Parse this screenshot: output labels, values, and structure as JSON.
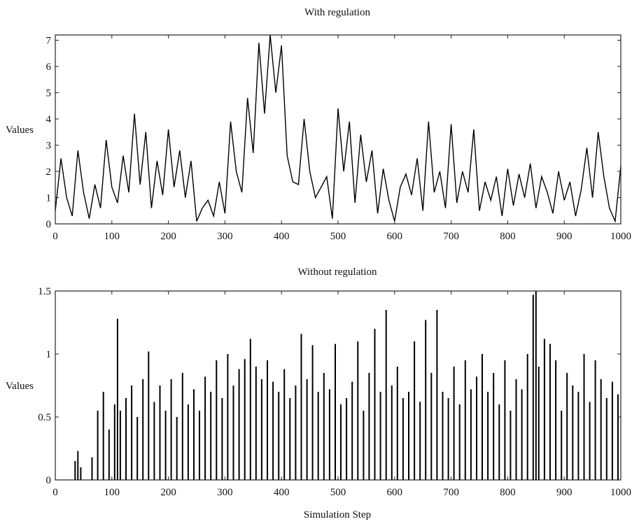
{
  "chart_data": [
    {
      "type": "line",
      "title": "With regulation",
      "xlabel": "",
      "ylabel": "Values",
      "xlim": [
        0,
        1000
      ],
      "ylim": [
        0,
        7.2
      ],
      "xticks": [
        0,
        100,
        200,
        300,
        400,
        500,
        600,
        700,
        800,
        900,
        1000
      ],
      "yticks": [
        0,
        1,
        2,
        3,
        4,
        5,
        6,
        7
      ],
      "grid": false,
      "color": "#000000",
      "series": [
        {
          "x": [
            0,
            10,
            20,
            30,
            40,
            50,
            60,
            70,
            80,
            90,
            100,
            110,
            120,
            130,
            140,
            150,
            160,
            170,
            180,
            190,
            200,
            210,
            220,
            230,
            240,
            250,
            260,
            270,
            280,
            290,
            300,
            310,
            320,
            330,
            340,
            350,
            360,
            370,
            380,
            390,
            400,
            410,
            420,
            430,
            440,
            450,
            460,
            470,
            480,
            490,
            500,
            510,
            520,
            530,
            540,
            550,
            560,
            570,
            580,
            590,
            600,
            610,
            620,
            630,
            640,
            650,
            660,
            670,
            680,
            690,
            700,
            710,
            720,
            730,
            740,
            750,
            760,
            770,
            780,
            790,
            800,
            810,
            820,
            830,
            840,
            850,
            860,
            870,
            880,
            890,
            900,
            910,
            920,
            930,
            940,
            950,
            960,
            970,
            980,
            990,
            1000
          ],
          "values": [
            0.5,
            2.5,
            1.0,
            0.3,
            2.8,
            1.2,
            0.2,
            1.5,
            0.6,
            3.2,
            1.4,
            0.8,
            2.6,
            1.2,
            4.2,
            1.5,
            3.5,
            0.6,
            2.4,
            1.1,
            3.6,
            1.4,
            2.8,
            1.0,
            2.4,
            0.1,
            0.6,
            0.9,
            0.3,
            1.6,
            0.4,
            3.9,
            2.0,
            1.2,
            4.8,
            2.7,
            6.9,
            4.2,
            7.2,
            5.0,
            6.8,
            2.6,
            1.6,
            1.5,
            4.0,
            2.0,
            1.0,
            1.4,
            1.8,
            0.2,
            4.4,
            2.0,
            3.9,
            0.8,
            3.4,
            1.6,
            2.8,
            0.4,
            2.1,
            0.9,
            0.1,
            1.4,
            1.9,
            1.1,
            2.5,
            0.5,
            3.9,
            1.2,
            2.0,
            0.6,
            3.8,
            0.8,
            2.0,
            1.2,
            3.6,
            0.5,
            1.6,
            0.9,
            1.8,
            0.3,
            2.1,
            0.7,
            1.9,
            1.0,
            2.3,
            0.6,
            1.8,
            1.2,
            0.4,
            2.0,
            0.9,
            1.6,
            0.3,
            1.3,
            2.9,
            1.0,
            3.5,
            1.8,
            0.6,
            0.1,
            2.2
          ]
        }
      ]
    },
    {
      "type": "bar",
      "title": "Without regulation",
      "xlabel": "Simulation Step",
      "ylabel": "Values",
      "xlim": [
        0,
        1000
      ],
      "ylim": [
        0,
        1.5
      ],
      "xticks": [
        0,
        100,
        200,
        300,
        400,
        500,
        600,
        700,
        800,
        900,
        1000
      ],
      "yticks": [
        0,
        0.5,
        1,
        1.5
      ],
      "yticklabels": [
        "0",
        "0.5",
        "1",
        "1.5"
      ],
      "grid": false,
      "color": "#000000",
      "series": [
        {
          "x": [
            35,
            40,
            45,
            65,
            75,
            85,
            95,
            105,
            110,
            115,
            125,
            135,
            145,
            155,
            165,
            175,
            185,
            195,
            205,
            215,
            225,
            235,
            245,
            255,
            265,
            275,
            285,
            295,
            305,
            315,
            325,
            335,
            345,
            355,
            365,
            375,
            385,
            395,
            405,
            415,
            425,
            435,
            445,
            455,
            465,
            475,
            485,
            495,
            505,
            515,
            525,
            535,
            545,
            555,
            565,
            575,
            585,
            595,
            605,
            615,
            625,
            635,
            645,
            655,
            665,
            675,
            685,
            695,
            705,
            715,
            725,
            735,
            745,
            755,
            765,
            775,
            785,
            795,
            805,
            815,
            825,
            835,
            845,
            850,
            855,
            865,
            875,
            885,
            895,
            905,
            915,
            925,
            935,
            945,
            955,
            965,
            975,
            985,
            995
          ],
          "values": [
            0.15,
            0.23,
            0.1,
            0.18,
            0.55,
            0.7,
            0.4,
            0.6,
            1.28,
            0.55,
            0.65,
            0.75,
            0.5,
            0.8,
            1.02,
            0.62,
            0.75,
            0.55,
            0.8,
            0.5,
            0.85,
            0.6,
            0.72,
            0.55,
            0.82,
            0.7,
            0.95,
            0.65,
            1.0,
            0.75,
            0.88,
            0.96,
            1.12,
            0.9,
            0.8,
            0.95,
            0.78,
            0.7,
            0.88,
            0.65,
            0.75,
            1.16,
            0.8,
            1.07,
            0.7,
            0.85,
            0.72,
            1.08,
            0.6,
            0.65,
            0.78,
            1.1,
            0.55,
            0.85,
            1.2,
            0.7,
            1.35,
            0.75,
            0.9,
            0.65,
            0.7,
            1.1,
            0.62,
            1.27,
            0.85,
            1.35,
            0.7,
            0.65,
            0.9,
            0.6,
            0.95,
            0.72,
            0.82,
            1.0,
            0.7,
            0.85,
            0.6,
            0.95,
            0.55,
            0.8,
            0.72,
            1.0,
            1.47,
            1.5,
            0.9,
            1.12,
            1.08,
            0.95,
            0.55,
            0.85,
            0.75,
            0.7,
            1.0,
            0.62,
            0.95,
            0.8,
            0.65,
            0.78,
            0.68
          ]
        }
      ]
    }
  ]
}
